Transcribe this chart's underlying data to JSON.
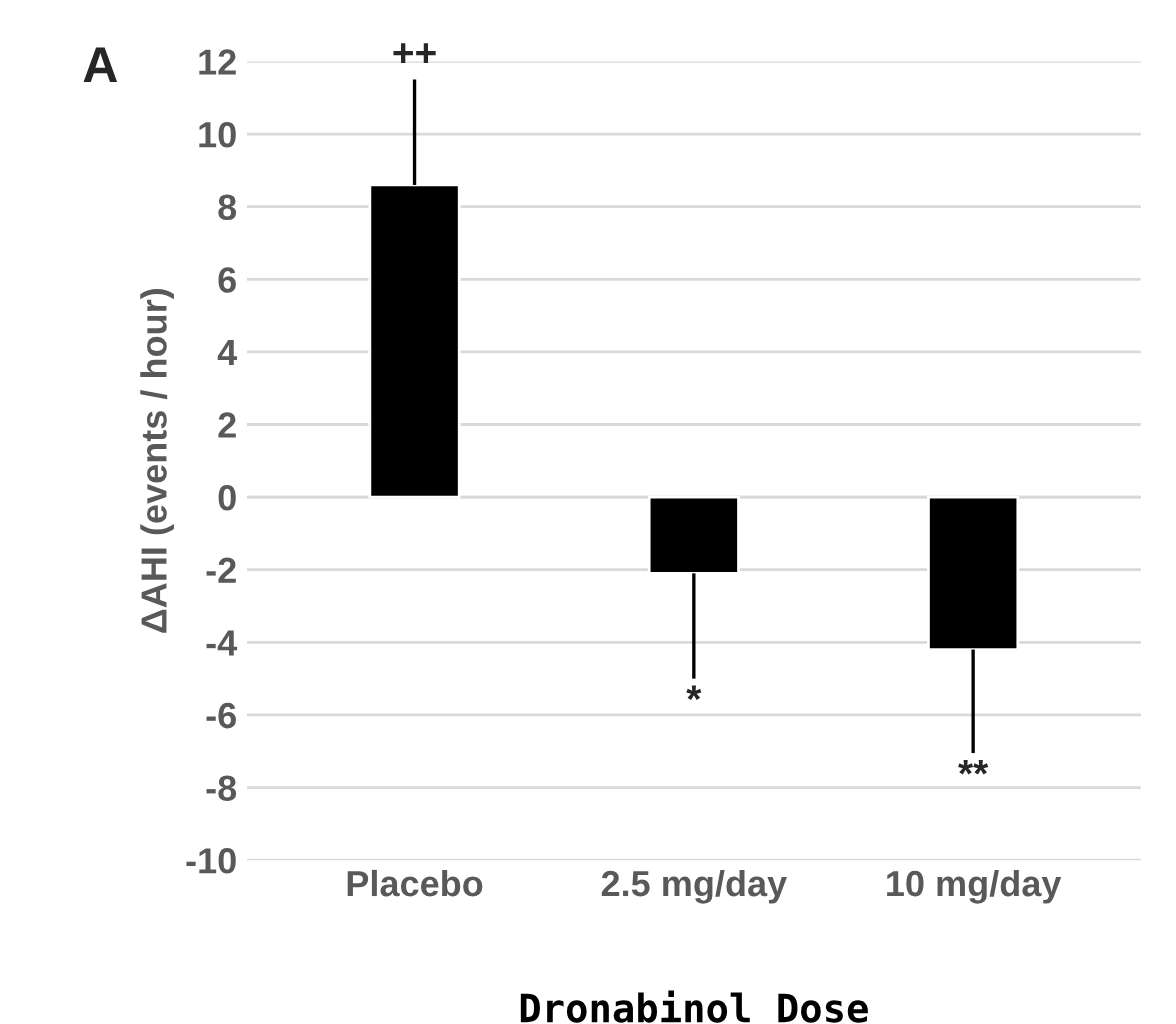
{
  "chart_data": {
    "type": "bar",
    "title": "A",
    "xlabel": "Dronabinol Dose",
    "ylabel": "ΔAHI (events / hour)",
    "categories": [
      "Placebo",
      "2.5 mg/day",
      "10 mg/day"
    ],
    "values": [
      8.6,
      -2.1,
      -4.2
    ],
    "color": "#000000",
    "errors": [
      [
        8.6,
        11.5
      ],
      [
        -5.0,
        -2.1
      ],
      [
        -7.05,
        -4.2
      ]
    ],
    "ylim": [
      -10,
      12
    ],
    "yticks": [
      -10,
      -8,
      -6,
      -4,
      -2,
      0,
      2,
      4,
      6,
      8,
      10,
      12
    ],
    "grid": "y",
    "annotations": [
      "++",
      "*",
      "**"
    ]
  }
}
